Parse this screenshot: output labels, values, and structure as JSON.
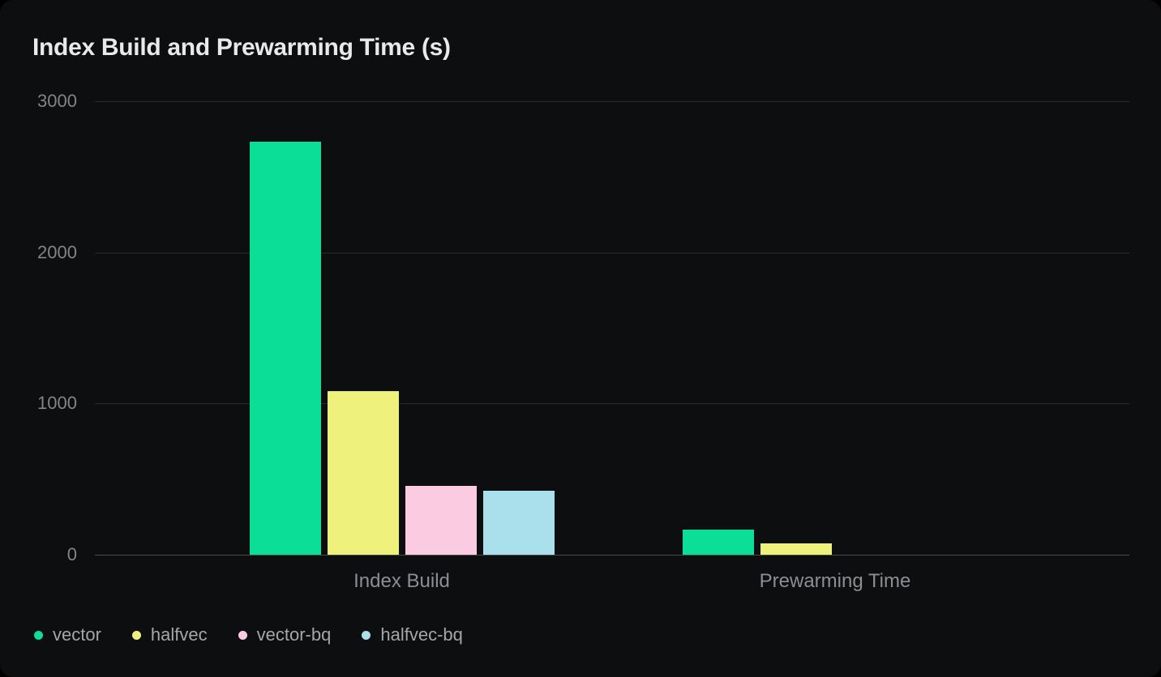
{
  "title": "Index Build and Prewarming Time (s)",
  "chart_data": {
    "type": "bar",
    "title": "Index Build and Prewarming Time (s)",
    "categories": [
      "Index Build",
      "Prewarming Time"
    ],
    "series": [
      {
        "name": "vector",
        "color": "#0ade97",
        "values": [
          2730,
          165
        ]
      },
      {
        "name": "halfvec",
        "color": "#eef27d",
        "values": [
          1080,
          75
        ]
      },
      {
        "name": "vector-bq",
        "color": "#fbcbe2",
        "values": [
          455,
          0
        ]
      },
      {
        "name": "halfvec-bq",
        "color": "#aadfec",
        "values": [
          425,
          0
        ]
      }
    ],
    "xlabel": "",
    "ylabel": "",
    "unit": "s",
    "ylim": [
      0,
      3000
    ],
    "yticks": [
      0,
      1000,
      2000,
      3000
    ],
    "grid": "horizontal",
    "legend_position": "bottom-left",
    "theme": {
      "background": "#0d0e0f",
      "grid_color": "#2a2c2e",
      "axis_color": "#47494b",
      "title_color": "#e8e9ea",
      "tick_label_color": "#828487",
      "category_label_color": "#8b8e93",
      "legend_label_color": "#a3a6aa"
    }
  }
}
